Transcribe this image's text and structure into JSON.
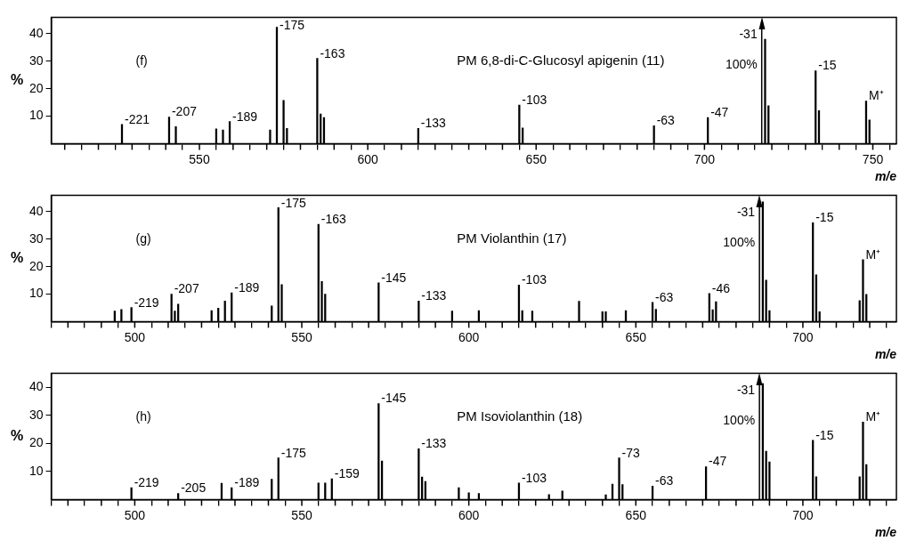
{
  "chart_data": [
    {
      "type": "bar",
      "title": "PM 6,8-di-C-Glucosyl apigenin (11)",
      "xlabel": "m/e",
      "ylabel": "%",
      "color": "#000000",
      "grid": false,
      "x": [
        527,
        541,
        543,
        555,
        557,
        559,
        571,
        573,
        575,
        576,
        585,
        586,
        587,
        615,
        645,
        646,
        685,
        701,
        718,
        719,
        733,
        734,
        748,
        749
      ],
      "values": [
        7,
        9.7,
        6.2,
        5.4,
        5,
        8,
        5,
        42.4,
        15.7,
        5.5,
        31,
        10.8,
        9.5,
        5.5,
        14,
        5.7,
        6.5,
        9.5,
        38,
        13.8,
        26.5,
        12,
        15.5,
        8.6
      ],
      "xlim": [
        506,
        757
      ],
      "ylim": [
        0,
        46
      ],
      "xticks": [
        {
          "value": 510,
          "label": null
        },
        {
          "value": 520,
          "label": null
        },
        {
          "value": 530,
          "label": null
        },
        {
          "value": 540,
          "label": null
        },
        550,
        {
          "value": 560,
          "label": null
        },
        {
          "value": 570,
          "label": null
        },
        {
          "value": 580,
          "label": null
        },
        {
          "value": 590,
          "label": null
        },
        600,
        {
          "value": 610,
          "label": null
        },
        {
          "value": 620,
          "label": null
        },
        {
          "value": 630,
          "label": null
        },
        {
          "value": 640,
          "label": null
        },
        650,
        {
          "value": 660,
          "label": null
        },
        {
          "value": 670,
          "label": null
        },
        {
          "value": 680,
          "label": null
        },
        {
          "value": 690,
          "label": null
        },
        700,
        {
          "value": 710,
          "label": null
        },
        {
          "value": 720,
          "label": null
        },
        {
          "value": 730,
          "label": null
        },
        {
          "value": 740,
          "label": null
        },
        750
      ],
      "yticks": [
        10,
        20,
        30,
        40
      ],
      "ref_lines": [
        {
          "axis": "x",
          "value": 717
        }
      ],
      "annotations": [
        "(f)",
        {
          "text": "-221",
          "x": 527,
          "y": 7
        },
        {
          "text": "-207",
          "x": 541,
          "y": 9.7
        },
        {
          "text": "-189",
          "x": 559,
          "y": 8
        },
        {
          "text": "-175",
          "x": 573,
          "y": 42.4
        },
        {
          "text": "-163",
          "x": 585,
          "y": 31
        },
        {
          "text": "-133",
          "x": 615,
          "y": 5.5
        },
        {
          "text": "-103",
          "x": 645,
          "y": 14
        },
        {
          "text": "-63",
          "x": 685,
          "y": 6.5
        },
        {
          "text": "-47",
          "x": 701,
          "y": 9.5
        },
        "-31",
        "100%",
        {
          "text": "-15",
          "x": 733,
          "y": 26.5
        },
        {
          "text": "M⁺",
          "x": 748,
          "y": 15.5
        }
      ]
    },
    {
      "type": "bar",
      "title": "PM Violanthin (17)",
      "xlabel": "m/e",
      "ylabel": "%",
      "color": "#000000",
      "grid": false,
      "x": [
        494,
        496,
        499,
        511,
        512,
        513,
        523,
        525,
        527,
        529,
        541,
        543,
        544,
        555,
        556,
        557,
        573,
        585,
        595,
        603,
        615,
        616,
        619,
        633,
        640,
        641,
        647,
        655,
        656,
        672,
        673,
        674,
        688,
        689,
        690,
        703,
        704,
        705,
        717,
        718,
        719
      ],
      "values": [
        3.8,
        4.4,
        5.1,
        10,
        3.8,
        6.3,
        4,
        4.9,
        7.5,
        10.5,
        5.7,
        41.5,
        13.5,
        35.4,
        14.6,
        10,
        14.1,
        7.5,
        3.8,
        4,
        13.3,
        4,
        3.8,
        7.4,
        3.6,
        3.6,
        4,
        7,
        4.5,
        10.2,
        4.3,
        7.2,
        43.6,
        15.1,
        4,
        36,
        17,
        3.6,
        7.6,
        22.5,
        9.9
      ],
      "xlim": [
        475,
        728
      ],
      "ylim": [
        0,
        46
      ],
      "xticks": [
        {
          "value": 480,
          "label": null
        },
        {
          "value": 490,
          "label": null
        },
        500,
        {
          "value": 510,
          "label": null
        },
        {
          "value": 520,
          "label": null
        },
        {
          "value": 530,
          "label": null
        },
        {
          "value": 540,
          "label": null
        },
        550,
        {
          "value": 560,
          "label": null
        },
        {
          "value": 570,
          "label": null
        },
        {
          "value": 580,
          "label": null
        },
        {
          "value": 590,
          "label": null
        },
        600,
        {
          "value": 610,
          "label": null
        },
        {
          "value": 620,
          "label": null
        },
        {
          "value": 630,
          "label": null
        },
        {
          "value": 640,
          "label": null
        },
        650,
        {
          "value": 660,
          "label": null
        },
        {
          "value": 670,
          "label": null
        },
        {
          "value": 680,
          "label": null
        },
        {
          "value": 690,
          "label": null
        },
        700,
        {
          "value": 710,
          "label": null
        },
        {
          "value": 720,
          "label": null
        }
      ],
      "yticks": [
        10,
        20,
        30,
        40
      ],
      "ref_lines": [
        {
          "axis": "x",
          "value": 687
        }
      ],
      "annotations": [
        "(g)",
        {
          "text": "-219",
          "x": 499,
          "y": 5.1
        },
        {
          "text": "-207",
          "x": 511,
          "y": 10
        },
        {
          "text": "-189",
          "x": 529,
          "y": 10.5
        },
        {
          "text": "-175",
          "x": 543,
          "y": 41.5
        },
        {
          "text": "-163",
          "x": 555,
          "y": 35.4
        },
        {
          "text": "-145",
          "x": 573,
          "y": 14.1
        },
        {
          "text": "-133",
          "x": 585,
          "y": 7.5
        },
        {
          "text": "-103",
          "x": 615,
          "y": 13.3
        },
        {
          "text": "-63",
          "x": 655,
          "y": 7
        },
        {
          "text": "-46",
          "x": 672,
          "y": 10.2
        },
        "-31",
        "100%",
        {
          "text": "-15",
          "x": 703,
          "y": 36
        },
        {
          "text": "M⁺",
          "x": 718,
          "y": 22.5
        }
      ]
    },
    {
      "type": "bar",
      "title": "PM Isoviolanthin (18)",
      "xlabel": "m/e",
      "ylabel": "%",
      "color": "#000000",
      "grid": false,
      "x": [
        499,
        513,
        526,
        529,
        541,
        543,
        555,
        557,
        559,
        573,
        574,
        585,
        586,
        587,
        597,
        600,
        603,
        615,
        624,
        628,
        641,
        643,
        645,
        646,
        655,
        671,
        688,
        689,
        690,
        703,
        704,
        717,
        718,
        719
      ],
      "values": [
        4.2,
        2.2,
        5.8,
        4.2,
        7.2,
        14.8,
        5.9,
        5.9,
        7.4,
        34.2,
        13.7,
        18.1,
        8,
        6.4,
        4.2,
        2.4,
        2.2,
        5.9,
        1.8,
        3,
        1.7,
        5.5,
        14.8,
        5.3,
        4.8,
        11.7,
        41.3,
        17.2,
        13.4,
        21.1,
        8.1,
        8.1,
        27.6,
        12.5
      ],
      "xlim": [
        475,
        728
      ],
      "ylim": [
        0,
        45
      ],
      "xticks": [
        {
          "value": 480,
          "label": null
        },
        {
          "value": 490,
          "label": null
        },
        500,
        {
          "value": 510,
          "label": null
        },
        {
          "value": 520,
          "label": null
        },
        {
          "value": 530,
          "label": null
        },
        {
          "value": 540,
          "label": null
        },
        550,
        {
          "value": 560,
          "label": null
        },
        {
          "value": 570,
          "label": null
        },
        {
          "value": 580,
          "label": null
        },
        {
          "value": 590,
          "label": null
        },
        600,
        {
          "value": 610,
          "label": null
        },
        {
          "value": 620,
          "label": null
        },
        {
          "value": 630,
          "label": null
        },
        {
          "value": 640,
          "label": null
        },
        650,
        {
          "value": 660,
          "label": null
        },
        {
          "value": 670,
          "label": null
        },
        {
          "value": 680,
          "label": null
        },
        {
          "value": 690,
          "label": null
        },
        700,
        {
          "value": 710,
          "label": null
        },
        {
          "value": 720,
          "label": null
        }
      ],
      "yticks": [
        10,
        20,
        30,
        40
      ],
      "ref_lines": [
        {
          "axis": "x",
          "value": 687
        }
      ],
      "annotations": [
        "(h)",
        {
          "text": "-219",
          "x": 499,
          "y": 4.2
        },
        {
          "text": "-205",
          "x": 513,
          "y": 2.2
        },
        {
          "text": "-189",
          "x": 529,
          "y": 4.2
        },
        {
          "text": "-175",
          "x": 543,
          "y": 14.8
        },
        {
          "text": "-159",
          "x": 559,
          "y": 7.4
        },
        {
          "text": "-145",
          "x": 573,
          "y": 34.2
        },
        {
          "text": "-133",
          "x": 585,
          "y": 18.1
        },
        {
          "text": "-103",
          "x": 615,
          "y": 5.9
        },
        {
          "text": "-73",
          "x": 645,
          "y": 14.8
        },
        {
          "text": "-63",
          "x": 655,
          "y": 4.8
        },
        {
          "text": "-47",
          "x": 671,
          "y": 11.7
        },
        "-31",
        "100%",
        {
          "text": "-15",
          "x": 703,
          "y": 21.1
        },
        {
          "text": "M⁺",
          "x": 718,
          "y": 27.6
        }
      ]
    }
  ]
}
